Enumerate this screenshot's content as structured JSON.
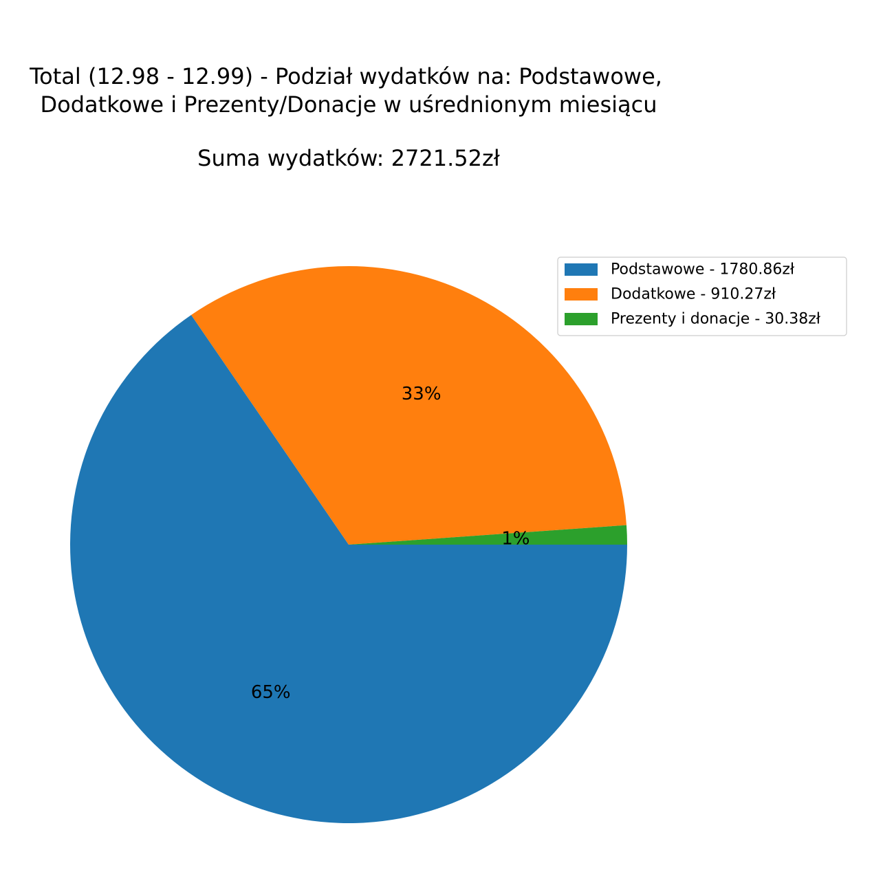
{
  "chart_data": {
    "type": "pie",
    "title_lines": [
      "Total (12.98 - 12.99) - Podział wydatków na: Podstawowe,",
      "Dodatkowe i Prezenty/Donacje w uśrednionym miesiącu"
    ],
    "subtitle": "Suma wydatków: 2721.52zł",
    "categories": [
      "Podstawowe",
      "Dodatkowe",
      "Prezenty i donacje"
    ],
    "values": [
      1780.86,
      910.27,
      30.38
    ],
    "percent_labels": [
      "65%",
      "33%",
      "1%"
    ],
    "legend": {
      "placement": "top-right",
      "entries": [
        "Podstawowe - 1780.86zł",
        "Dodatkowe - 910.27zł",
        "Prezenty i donacje - 30.38zł"
      ]
    },
    "colors": [
      "#1f77b4",
      "#ff7f0e",
      "#2ca02c"
    ],
    "start_angle_deg": 0,
    "direction": "clockwise"
  }
}
